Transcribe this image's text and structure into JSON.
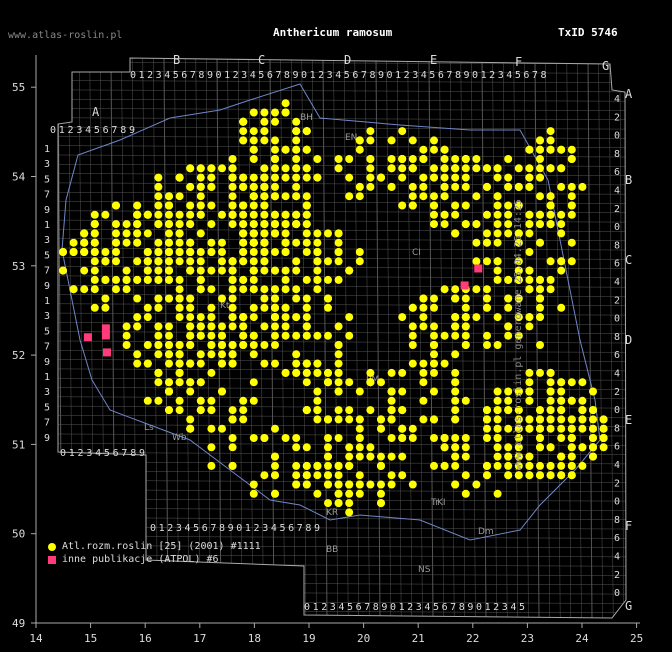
{
  "header": {
    "site": "www.atlas-roslin.pl",
    "title": "Anthericum ramosum",
    "taxon_id": "TxID 5746",
    "generated": "www.atlas-roslin.pl generowane 25.04.25 14:25"
  },
  "axes": {
    "x_ticks": [
      "14",
      "15",
      "16",
      "17",
      "18",
      "19",
      "20",
      "21",
      "22",
      "23",
      "24",
      "25"
    ],
    "y_ticks": [
      "49",
      "50",
      "51",
      "52",
      "53",
      "54",
      "55"
    ]
  },
  "grid_letters": {
    "top": [
      "A",
      "B",
      "C",
      "D",
      "E",
      "F",
      "G"
    ],
    "right": [
      "A",
      "B",
      "C",
      "D",
      "E",
      "F",
      "G"
    ]
  },
  "digit_rows": {
    "top_main": "0123456789012345678901234567890123456789012345678",
    "top_a": "0123456789",
    "bottom_a": "0123456789",
    "bottom_b": "01234567890123456789",
    "bottom_c": "01234567890123456789012345",
    "left_col": [
      "1",
      "3",
      "5",
      "7",
      "9",
      "1",
      "3",
      "5",
      "7",
      "9",
      "1",
      "3",
      "5",
      "7",
      "9",
      "1",
      "3",
      "5",
      "7",
      "9"
    ],
    "right_col": [
      "4",
      "2",
      "0",
      "8",
      "6",
      "4",
      "2",
      "0",
      "8",
      "6",
      "4",
      "2",
      "0",
      "8",
      "6",
      "4",
      "2",
      "0",
      "8",
      "6",
      "4",
      "2",
      "0",
      "8",
      "6",
      "4",
      "2",
      "0"
    ]
  },
  "region_labels": [
    "EN",
    "BH",
    "CI",
    "PM",
    "KI",
    "Tr",
    "NS",
    "BB",
    "Wb",
    "KR",
    "Dm",
    "Kt",
    "Ls"
  ],
  "legend": {
    "items": [
      {
        "label": "Atl.rozm.roslin [25] (2001) #1111",
        "symbol": "dot",
        "color": "#ffff00"
      },
      {
        "label": "inne publikacje (ATPOL) #6",
        "symbol": "square",
        "color": "#ff3b7a"
      }
    ]
  },
  "colors": {
    "background": "#000000",
    "grid": "#777777",
    "record": "#ffff00",
    "other": "#ff3b7a",
    "border": "#6f86c8"
  },
  "map_data": {
    "records_circle_count": 1111,
    "records_square_count": 6,
    "squares": [
      [
        14.95,
        52.2
      ],
      [
        15.28,
        52.22
      ],
      [
        15.3,
        52.03
      ],
      [
        21.85,
        52.78
      ],
      [
        22.1,
        52.97
      ],
      [
        15.28,
        52.3
      ]
    ]
  }
}
